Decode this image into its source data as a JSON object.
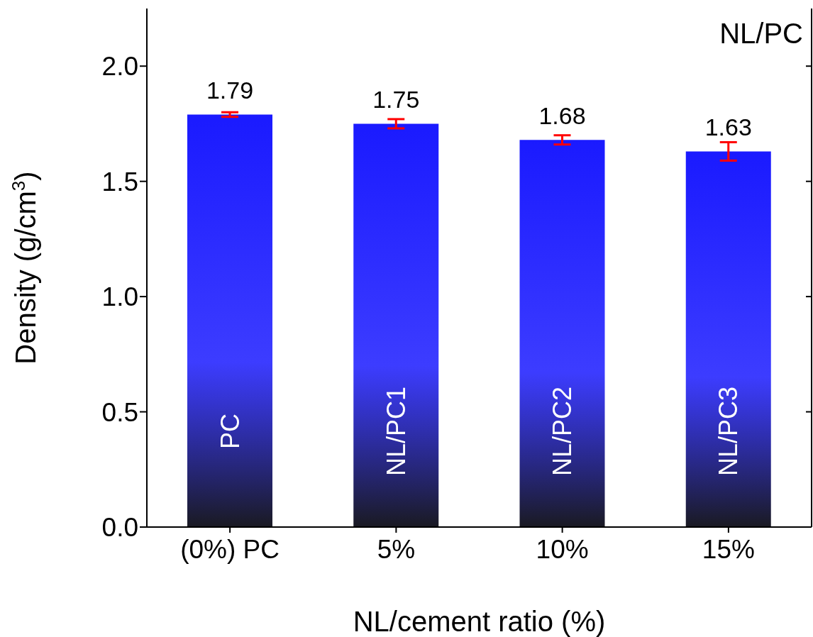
{
  "chart_data": {
    "type": "bar",
    "xlabel": "NL/cement ratio (%)",
    "ylabel": "Density (g/cm$^{3}$)",
    "categories": [
      "(0%) PC",
      "5%",
      "10%",
      "15%"
    ],
    "values": [
      1.79,
      1.75,
      1.68,
      1.63
    ],
    "errors": [
      0.01,
      0.02,
      0.02,
      0.04
    ],
    "color": "#1a1aff",
    "ylim": [
      0,
      2.25
    ],
    "yticks": [
      {
        "value": 0,
        "label": "0.0"
      },
      0.5,
      {
        "value": 1,
        "label": "1.0"
      },
      1.5,
      {
        "value": 2,
        "label": "2.0"
      }
    ],
    "data_labels": true,
    "grid": false,
    "legend": false,
    "annotations": [
      "NL/PC",
      "PC",
      "NL/PC1",
      "NL/PC2",
      "NL/PC3"
    ]
  }
}
